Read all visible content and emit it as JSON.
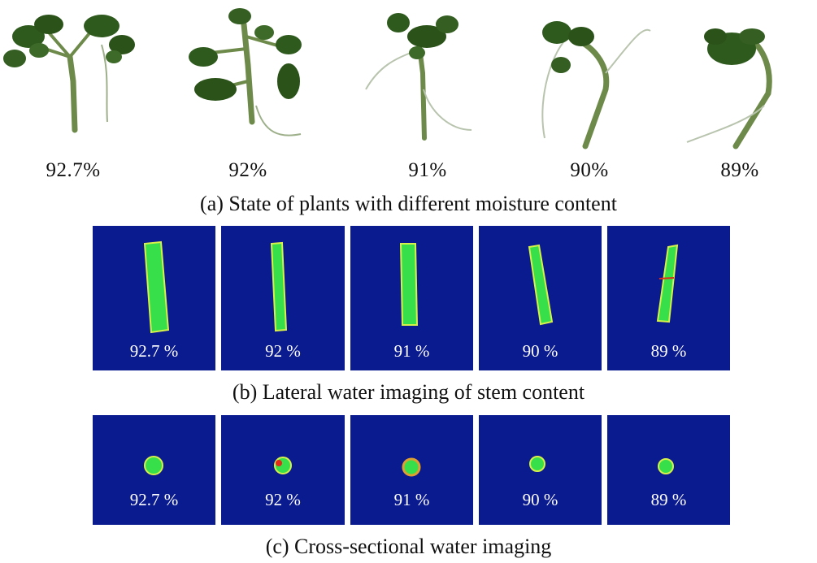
{
  "row_a": {
    "labels": [
      "92.7%",
      "92%",
      "91%",
      "90%",
      "89%"
    ],
    "caption": "(a) State of plants with different moisture content"
  },
  "row_b": {
    "labels": [
      "92.7 %",
      "92 %",
      "91 %",
      "90 %",
      "89 %"
    ],
    "caption": "(b) Lateral water imaging of stem content"
  },
  "row_c": {
    "labels": [
      "92.7 %",
      "92 %",
      "91 %",
      "90 %",
      "89 %"
    ],
    "caption": "(c) Cross-sectional water imaging"
  },
  "colors": {
    "panel_background": "#0a1a8f",
    "stem_green": "#37e04a",
    "stem_edge_yellow": "#d8f04a",
    "hotspot_red": "#e02a1a",
    "leaf_green": "#2f5a1e",
    "stalk_green": "#6d8a4a"
  }
}
